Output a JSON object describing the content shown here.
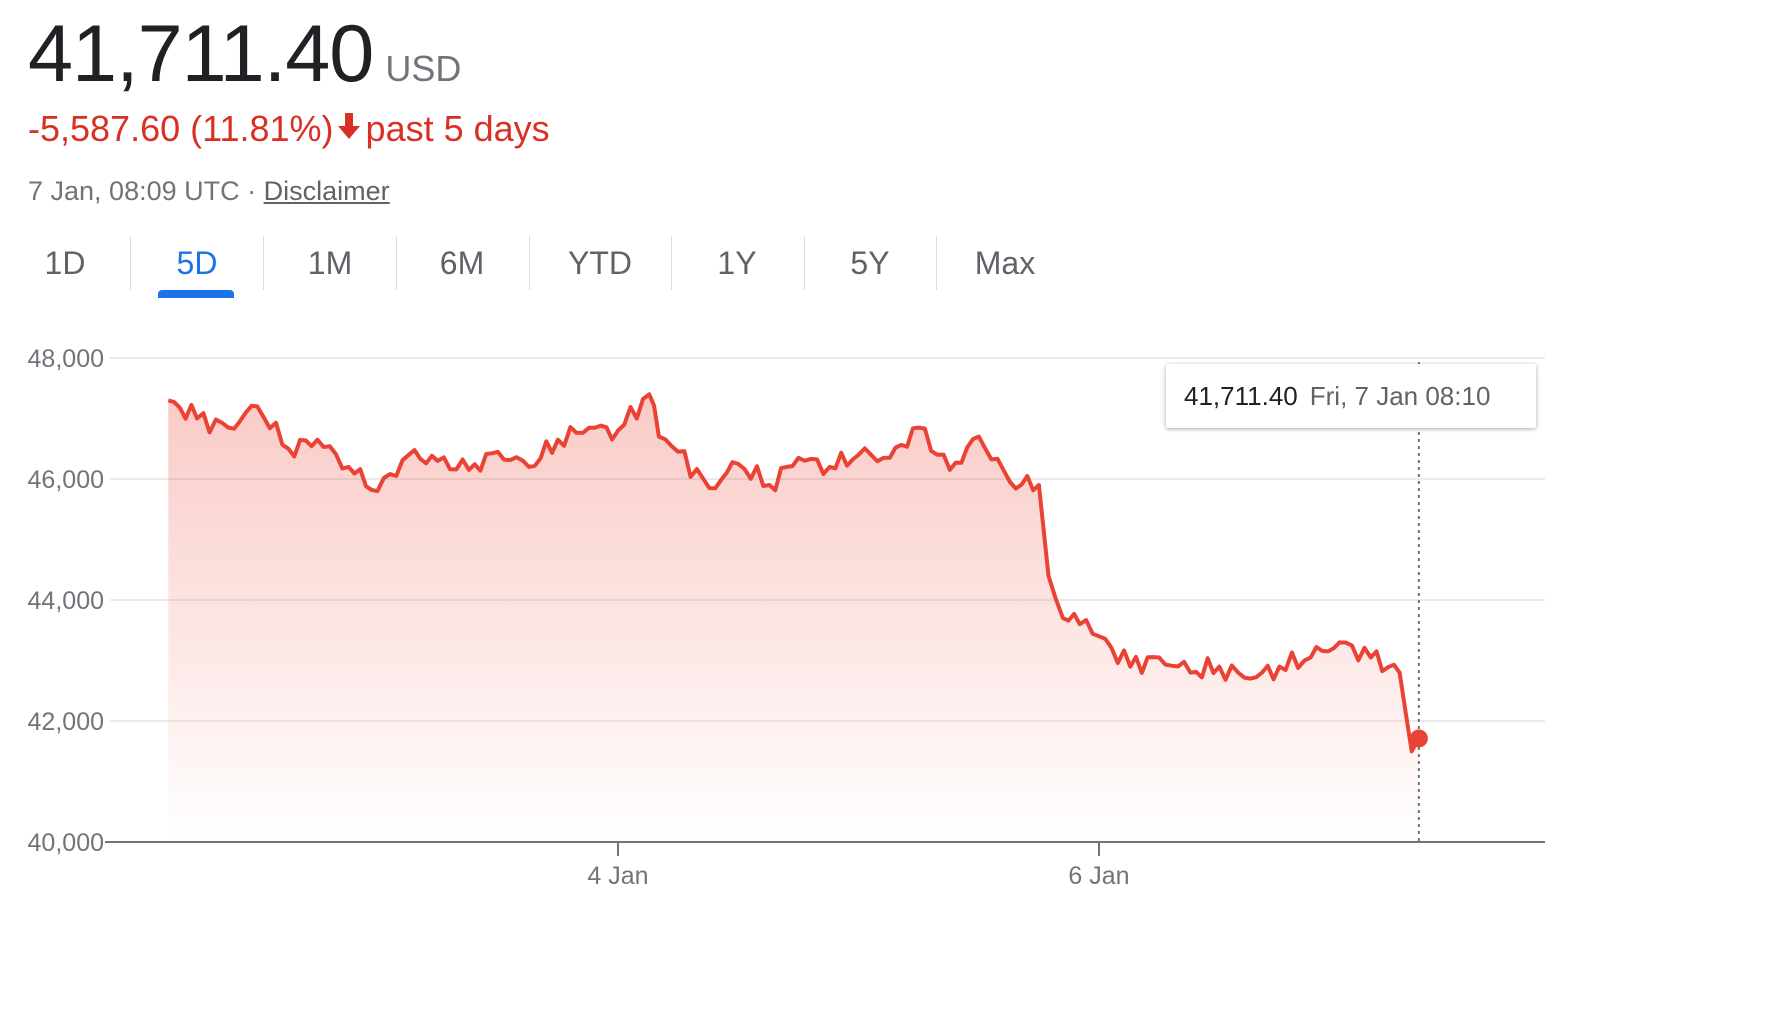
{
  "quote": {
    "price": "41,711.40",
    "currency": "USD",
    "change": "-5,587.60",
    "change_pct": "(11.81%)",
    "period": "past 5 days",
    "timestamp": "7 Jan, 08:09 UTC",
    "separator": "·",
    "disclaimer": "Disclaimer",
    "trend_color": "#d93025",
    "trend_icon": "arrow-down-icon"
  },
  "tabs": [
    {
      "label": "1D",
      "active": false
    },
    {
      "label": "5D",
      "active": true
    },
    {
      "label": "1M",
      "active": false
    },
    {
      "label": "6M",
      "active": false
    },
    {
      "label": "YTD",
      "active": false
    },
    {
      "label": "1Y",
      "active": false
    },
    {
      "label": "5Y",
      "active": false
    },
    {
      "label": "Max",
      "active": false
    }
  ],
  "tooltip": {
    "value": "41,711.40",
    "time": "Fri, 7 Jan 08:10"
  },
  "chart_data": {
    "type": "area",
    "title": "",
    "xlabel": "",
    "ylabel": "",
    "ylim": [
      40000,
      48000
    ],
    "xlim_days": [
      2.0,
      7.35
    ],
    "x_ticks": [
      {
        "day": 4,
        "label": "4 Jan"
      },
      {
        "day": 6,
        "label": "6 Jan"
      }
    ],
    "y_ticks": [
      {
        "value": 40000,
        "label": "40,000"
      },
      {
        "value": 42000,
        "label": "42,000"
      },
      {
        "value": 44000,
        "label": "44,000"
      },
      {
        "value": 46000,
        "label": "46,000"
      },
      {
        "value": 48000,
        "label": "48,000"
      }
    ],
    "grid": "horizontal",
    "line_color": "#ea4335",
    "series": [
      {
        "values_x_day": [
          2.13,
          2.25,
          2.38,
          2.5,
          2.63,
          2.75,
          2.88,
          3.0,
          3.13,
          3.25,
          3.38,
          3.5,
          3.63,
          3.75,
          3.88,
          4.0,
          4.13,
          4.17,
          4.25,
          4.38,
          4.5,
          4.63,
          4.75,
          4.88,
          5.0,
          5.13,
          5.25,
          5.38,
          5.5,
          5.63,
          5.75,
          5.79,
          5.85,
          5.92,
          6.0,
          6.13,
          6.25,
          6.38,
          6.5,
          6.63,
          6.75,
          6.88,
          7.0,
          7.13,
          7.25,
          7.3,
          7.33
        ],
        "values_y": [
          47300,
          47000,
          46850,
          47200,
          46500,
          46650,
          46200,
          45800,
          46400,
          46300,
          46150,
          46450,
          46200,
          46650,
          46850,
          46800,
          47400,
          46700,
          46450,
          45850,
          46250,
          45900,
          46350,
          46200,
          46400,
          46350,
          46850,
          46150,
          46700,
          45950,
          45900,
          44400,
          43700,
          43600,
          43400,
          42900,
          43050,
          42800,
          42900,
          42700,
          42900,
          43050,
          43300,
          43050,
          42800,
          41500,
          41711.4
        ]
      }
    ]
  }
}
